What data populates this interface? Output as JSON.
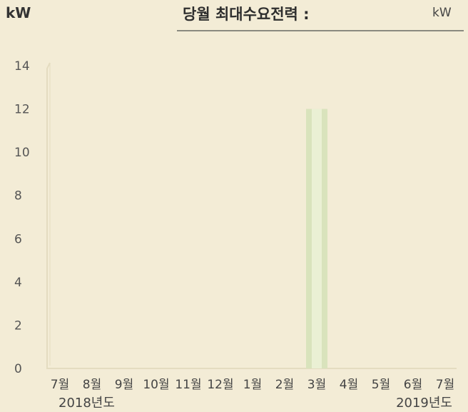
{
  "header": {
    "unit_label": "kW",
    "title": "당월 최대수요전력 :",
    "value_unit": "kW"
  },
  "chart_data": {
    "type": "bar",
    "categories": [
      "7월",
      "8월",
      "9월",
      "10월",
      "11월",
      "12월",
      "1월",
      "2월",
      "3월",
      "4월",
      "5월",
      "6월",
      "7월"
    ],
    "values": [
      0,
      0,
      0,
      0,
      0,
      0,
      0,
      0,
      12,
      0,
      0,
      0,
      0
    ],
    "ylim": [
      0,
      14
    ],
    "yticks": [
      0,
      2,
      4,
      6,
      8,
      10,
      12,
      14
    ],
    "ylabel": "kW",
    "grid": false,
    "colors": {
      "bar": "#d9e3bc",
      "bar_highlight": "#eef2da",
      "axis": "#e4dcc0"
    },
    "year_labels": [
      "2018년도",
      "2019년도"
    ]
  }
}
